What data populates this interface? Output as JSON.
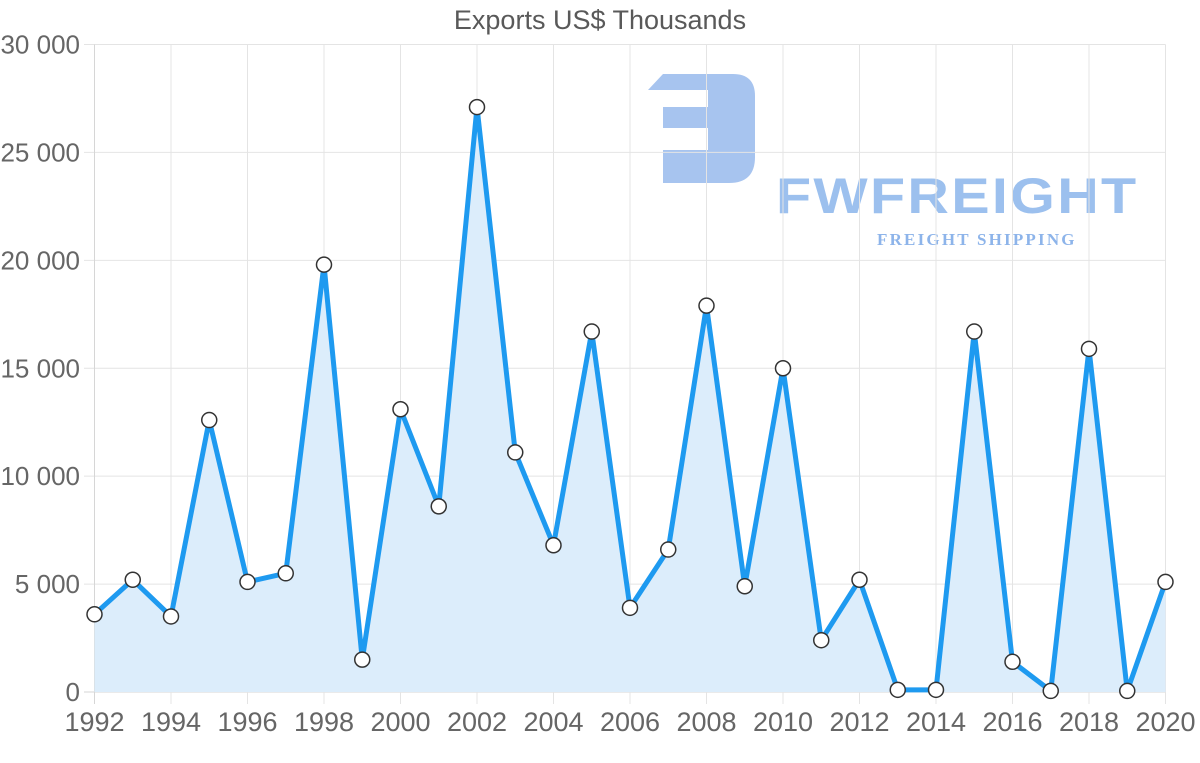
{
  "page": {
    "background": "#ffffff"
  },
  "chart_data": {
    "type": "line",
    "area_fill": true,
    "title": "Exports US$ Thousands",
    "xlabel": "",
    "ylabel": "",
    "x": [
      1992,
      1993,
      1994,
      1995,
      1996,
      1997,
      1998,
      1999,
      2000,
      2001,
      2002,
      2003,
      2004,
      2005,
      2006,
      2007,
      2008,
      2009,
      2010,
      2011,
      2012,
      2013,
      2014,
      2015,
      2016,
      2017,
      2018,
      2019,
      2020
    ],
    "values": [
      3600,
      5200,
      3500,
      12600,
      5100,
      5500,
      19800,
      1500,
      13100,
      8600,
      27100,
      11100,
      6800,
      16700,
      3900,
      6600,
      17900,
      4900,
      15000,
      2400,
      5200,
      100,
      100,
      16700,
      1400,
      50,
      15900,
      50,
      5100
    ],
    "ylim": [
      0,
      30000
    ],
    "y_tick_step": 5000,
    "y_tick_labels": [
      "0",
      "5 000",
      "10 000",
      "15 000",
      "20 000",
      "25 000",
      "30 000"
    ],
    "x_tick_years": [
      1992,
      1994,
      1996,
      1998,
      2000,
      2002,
      2004,
      2006,
      2008,
      2010,
      2012,
      2014,
      2016,
      2018,
      2020
    ],
    "grid": true,
    "legend": "none",
    "marker": "circle",
    "colors": {
      "line": "#1e9af0",
      "area": "#dcedfb",
      "marker_fill": "#ffffff",
      "marker_stroke": "#333333",
      "grid": "#e4e4e4",
      "axis": "#d6d6d6",
      "tick_text": "#666666",
      "title_text": "#595959"
    }
  },
  "logo": {
    "wordmark": "FWFREIGHT",
    "tagline": "FREIGHT SHIPPING",
    "colors": {
      "icon": "#a7c4ef",
      "wordmark": "#9cc0ee",
      "tagline": "#8db4ea"
    }
  }
}
